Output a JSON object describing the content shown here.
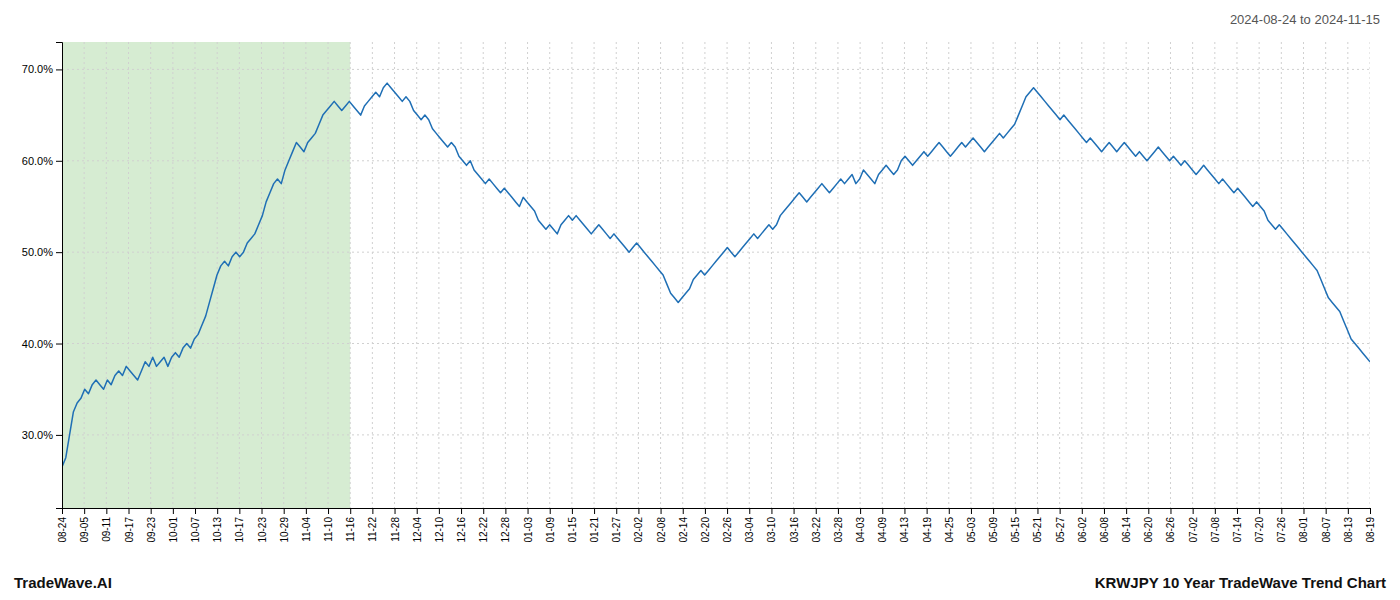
{
  "chart_data": {
    "type": "line",
    "title": "KRWJPY 10 Year TradeWave Trend Chart",
    "subtitle": "2024-08-24 to 2024-11-15",
    "annotations": [
      "TradeWave.AI"
    ],
    "color": "#1f6fb5",
    "grid": true,
    "xlim": [
      0,
      346
    ],
    "xticks": [
      {
        "value": 0,
        "label": "08-24"
      },
      {
        "value": 5.8644,
        "label": "09-05"
      },
      {
        "value": 11.7288,
        "label": "09-11"
      },
      {
        "value": 17.5932,
        "label": "09-17"
      },
      {
        "value": 23.4576,
        "label": "09-23"
      },
      {
        "value": 29.322,
        "label": "10-01"
      },
      {
        "value": 35.1864,
        "label": "10-07"
      },
      {
        "value": 41.0508,
        "label": "10-13"
      },
      {
        "value": 46.9153,
        "label": "10-17"
      },
      {
        "value": 52.7797,
        "label": "10-23"
      },
      {
        "value": 58.6441,
        "label": "10-29"
      },
      {
        "value": 64.5085,
        "label": "11-04"
      },
      {
        "value": 70.3729,
        "label": "11-10"
      },
      {
        "value": 76.2373,
        "label": "11-16"
      },
      {
        "value": 82.1017,
        "label": "11-22"
      },
      {
        "value": 87.9661,
        "label": "11-28"
      },
      {
        "value": 93.8305,
        "label": "12-04"
      },
      {
        "value": 99.6949,
        "label": "12-10"
      },
      {
        "value": 105.5593,
        "label": "12-16"
      },
      {
        "value": 111.4237,
        "label": "12-22"
      },
      {
        "value": 117.2881,
        "label": "12-28"
      },
      {
        "value": 123.1525,
        "label": "01-03"
      },
      {
        "value": 129.0169,
        "label": "01-09"
      },
      {
        "value": 134.8814,
        "label": "01-15"
      },
      {
        "value": 140.7458,
        "label": "01-21"
      },
      {
        "value": 146.6102,
        "label": "01-27"
      },
      {
        "value": 152.4746,
        "label": "02-02"
      },
      {
        "value": 158.339,
        "label": "02-08"
      },
      {
        "value": 164.2034,
        "label": "02-14"
      },
      {
        "value": 170.0678,
        "label": "02-20"
      },
      {
        "value": 175.9322,
        "label": "02-26"
      },
      {
        "value": 181.7966,
        "label": "03-04"
      },
      {
        "value": 187.661,
        "label": "03-10"
      },
      {
        "value": 193.5254,
        "label": "03-16"
      },
      {
        "value": 199.3898,
        "label": "03-22"
      },
      {
        "value": 205.2542,
        "label": "03-28"
      },
      {
        "value": 211.1186,
        "label": "04-03"
      },
      {
        "value": 216.9831,
        "label": "04-09"
      },
      {
        "value": 222.8475,
        "label": "04-13"
      },
      {
        "value": 228.7119,
        "label": "04-19"
      },
      {
        "value": 234.5763,
        "label": "04-25"
      },
      {
        "value": 240.4407,
        "label": "05-03"
      },
      {
        "value": 246.3051,
        "label": "05-09"
      },
      {
        "value": 252.1695,
        "label": "05-15"
      },
      {
        "value": 258.0339,
        "label": "05-21"
      },
      {
        "value": 263.8983,
        "label": "05-27"
      },
      {
        "value": 269.7627,
        "label": "06-02"
      },
      {
        "value": 275.6271,
        "label": "06-08"
      },
      {
        "value": 281.4915,
        "label": "06-14"
      },
      {
        "value": 287.3559,
        "label": "06-20"
      },
      {
        "value": 293.2203,
        "label": "06-26"
      },
      {
        "value": 299.0847,
        "label": "07-02"
      },
      {
        "value": 304.9492,
        "label": "07-08"
      },
      {
        "value": 310.8136,
        "label": "07-14"
      },
      {
        "value": 316.678,
        "label": "07-20"
      },
      {
        "value": 322.5424,
        "label": "07-26"
      },
      {
        "value": 328.4068,
        "label": "08-01"
      },
      {
        "value": 334.2712,
        "label": "08-07"
      },
      {
        "value": 340.1356,
        "label": "08-13"
      },
      {
        "value": 346,
        "label": "08-19"
      }
    ],
    "ylim": [
      22,
      73
    ],
    "yticks": [
      {
        "value": 30.0,
        "label": "30.0%"
      },
      {
        "value": 40.0,
        "label": "40.0%"
      },
      {
        "value": 50.0,
        "label": "50.0%"
      },
      {
        "value": 60.0,
        "label": "60.0%"
      },
      {
        "value": 70.0,
        "label": "70.0%"
      }
    ],
    "shaded_region": {
      "from": 0,
      "to": 76.2373,
      "color": "#d6ecd2"
    },
    "values": [
      26.5,
      27.5,
      30.0,
      32.5,
      33.5,
      34.0,
      35.0,
      34.5,
      35.5,
      36.0,
      35.5,
      35.0,
      36.0,
      35.5,
      36.5,
      37.0,
      36.5,
      37.5,
      37.0,
      36.5,
      36.0,
      37.0,
      38.0,
      37.5,
      38.5,
      37.5,
      38.0,
      38.5,
      37.5,
      38.5,
      39.0,
      38.5,
      39.5,
      40.0,
      39.5,
      40.5,
      41.0,
      42.0,
      43.0,
      44.5,
      46.0,
      47.5,
      48.5,
      49.0,
      48.5,
      49.5,
      50.0,
      49.5,
      50.0,
      51.0,
      51.5,
      52.0,
      53.0,
      54.0,
      55.5,
      56.5,
      57.5,
      58.0,
      57.5,
      59.0,
      60.0,
      61.0,
      62.0,
      61.5,
      61.0,
      62.0,
      62.5,
      63.0,
      64.0,
      65.0,
      65.5,
      66.0,
      66.5,
      66.0,
      65.5,
      66.0,
      66.5,
      66.0,
      65.5,
      65.0,
      66.0,
      66.5,
      67.0,
      67.5,
      67.0,
      68.0,
      68.5,
      68.0,
      67.5,
      67.0,
      66.5,
      67.0,
      66.5,
      65.5,
      65.0,
      64.5,
      65.0,
      64.5,
      63.5,
      63.0,
      62.5,
      62.0,
      61.5,
      62.0,
      61.5,
      60.5,
      60.0,
      59.5,
      60.0,
      59.0,
      58.5,
      58.0,
      57.5,
      58.0,
      57.5,
      57.0,
      56.5,
      57.0,
      56.5,
      56.0,
      55.5,
      55.0,
      56.0,
      55.5,
      55.0,
      54.5,
      53.5,
      53.0,
      52.5,
      53.0,
      52.5,
      52.0,
      53.0,
      53.5,
      54.0,
      53.5,
      54.0,
      53.5,
      53.0,
      52.5,
      52.0,
      52.5,
      53.0,
      52.5,
      52.0,
      51.5,
      52.0,
      51.5,
      51.0,
      50.5,
      50.0,
      50.5,
      51.0,
      50.5,
      50.0,
      49.5,
      49.0,
      48.5,
      48.0,
      47.5,
      46.5,
      45.5,
      45.0,
      44.5,
      45.0,
      45.5,
      46.0,
      47.0,
      47.5,
      48.0,
      47.5,
      48.0,
      48.5,
      49.0,
      49.5,
      50.0,
      50.5,
      50.0,
      49.5,
      50.0,
      50.5,
      51.0,
      51.5,
      52.0,
      51.5,
      52.0,
      52.5,
      53.0,
      52.5,
      53.0,
      54.0,
      54.5,
      55.0,
      55.5,
      56.0,
      56.5,
      56.0,
      55.5,
      56.0,
      56.5,
      57.0,
      57.5,
      57.0,
      56.5,
      57.0,
      57.5,
      58.0,
      57.5,
      58.0,
      58.5,
      57.5,
      58.0,
      59.0,
      58.5,
      58.0,
      57.5,
      58.5,
      59.0,
      59.5,
      59.0,
      58.5,
      59.0,
      60.0,
      60.5,
      60.0,
      59.5,
      60.0,
      60.5,
      61.0,
      60.5,
      61.0,
      61.5,
      62.0,
      61.5,
      61.0,
      60.5,
      61.0,
      61.5,
      62.0,
      61.5,
      62.0,
      62.5,
      62.0,
      61.5,
      61.0,
      61.5,
      62.0,
      62.5,
      63.0,
      62.5,
      63.0,
      63.5,
      64.0,
      65.0,
      66.0,
      67.0,
      67.5,
      68.0,
      67.5,
      67.0,
      66.5,
      66.0,
      65.5,
      65.0,
      64.5,
      65.0,
      64.5,
      64.0,
      63.5,
      63.0,
      62.5,
      62.0,
      62.5,
      62.0,
      61.5,
      61.0,
      61.5,
      62.0,
      61.5,
      61.0,
      61.5,
      62.0,
      61.5,
      61.0,
      60.5,
      61.0,
      60.5,
      60.0,
      60.5,
      61.0,
      61.5,
      61.0,
      60.5,
      60.0,
      60.5,
      60.0,
      59.5,
      60.0,
      59.5,
      59.0,
      58.5,
      59.0,
      59.5,
      59.0,
      58.5,
      58.0,
      57.5,
      58.0,
      57.5,
      57.0,
      56.5,
      57.0,
      56.5,
      56.0,
      55.5,
      55.0,
      55.5,
      55.0,
      54.5,
      53.5,
      53.0,
      52.5,
      53.0,
      52.5,
      52.0,
      51.5,
      51.0,
      50.5,
      50.0,
      49.5,
      49.0,
      48.5,
      48.0,
      47.0,
      46.0,
      45.0,
      44.5,
      44.0,
      43.5,
      42.5,
      41.5,
      40.5,
      40.0,
      39.5,
      39.0,
      38.5,
      38.0
    ]
  }
}
